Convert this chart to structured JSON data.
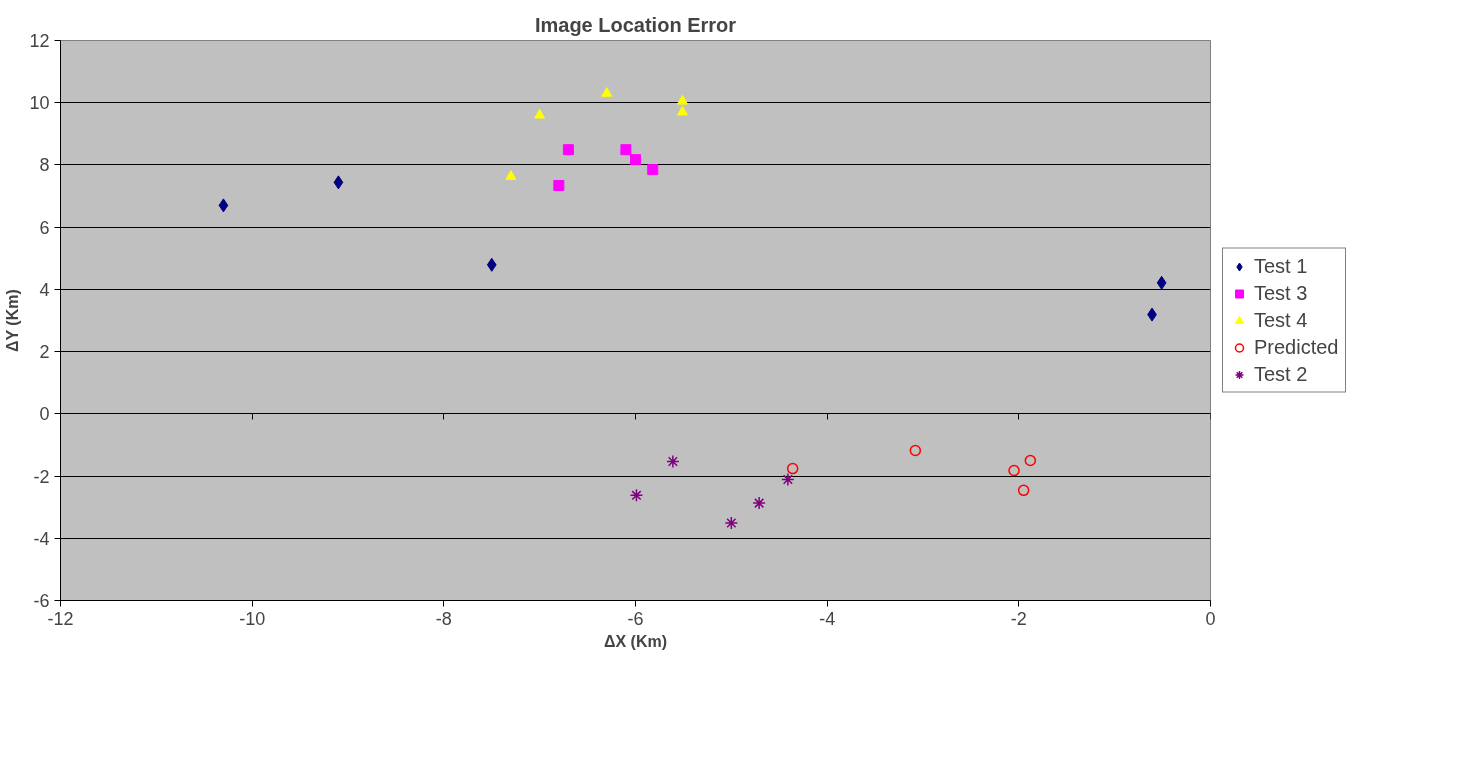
{
  "chart_data": {
    "type": "scatter",
    "title": "Image Location Error",
    "xlabel": "ΔX (Km)",
    "ylabel": "ΔY (Km)",
    "xlim": [
      -12,
      0
    ],
    "xticks": [
      -12,
      -10,
      -8,
      -6,
      -4,
      -2,
      0
    ],
    "ylim": [
      -6,
      12
    ],
    "yticks": [
      -6,
      -4,
      -2,
      0,
      2,
      4,
      6,
      8,
      10,
      12
    ],
    "grid": "y",
    "legend": "right",
    "series": [
      {
        "name": "Test 1",
        "color": "#000080",
        "marker": "diamond",
        "x": [
          -10.3,
          -9.1,
          -7.5,
          -0.61,
          -0.51
        ],
        "values": [
          6.7,
          7.44,
          4.79,
          3.19,
          4.21
        ]
      },
      {
        "name": "Test 3",
        "color": "#ff00ff",
        "marker": "square",
        "x": [
          -6.7,
          -6.8,
          -6.1,
          -6.0,
          -5.82
        ],
        "values": [
          8.49,
          7.34,
          8.49,
          8.17,
          7.85
        ]
      },
      {
        "name": "Test 4",
        "color": "#ffff00",
        "marker": "triangle",
        "x": [
          -7.3,
          -7.0,
          -6.3,
          -5.51,
          -5.51
        ],
        "values": [
          7.63,
          9.6,
          10.3,
          10.05,
          9.7
        ]
      },
      {
        "name": "Predicted",
        "color": "#ff0000",
        "marker": "circle",
        "x": [
          -3.08,
          -4.36,
          -2.05,
          -1.88,
          -1.95
        ],
        "values": [
          -1.18,
          -1.76,
          -1.82,
          -1.5,
          -2.46
        ]
      },
      {
        "name": "Test 2",
        "color": "#800080",
        "marker": "cross",
        "x": [
          -5.99,
          -5.61,
          -5.0,
          -4.71,
          -4.41
        ],
        "values": [
          -2.62,
          -1.53,
          -3.51,
          -2.87,
          -2.11
        ]
      }
    ]
  }
}
